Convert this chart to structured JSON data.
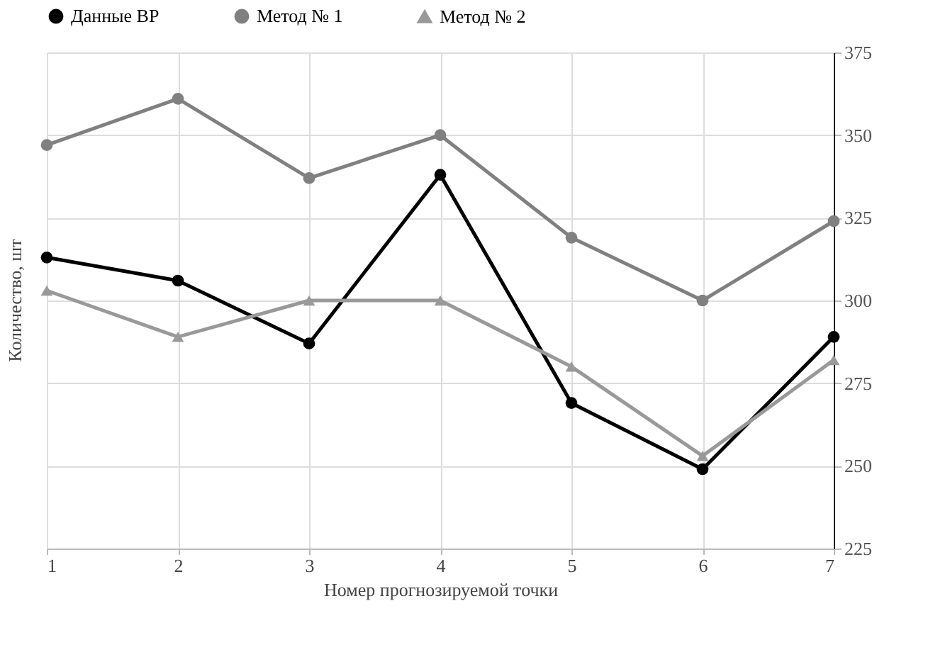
{
  "chart_data": {
    "type": "line",
    "xlabel": "Номер прогнозируемой точки",
    "ylabel": "Количество, шт",
    "x": [
      1,
      2,
      3,
      4,
      5,
      6,
      7
    ],
    "xlim": [
      1,
      7
    ],
    "xticks": [
      1,
      2,
      3,
      4,
      5,
      6,
      7
    ],
    "ylim": [
      225,
      375
    ],
    "yticks": [
      225,
      250,
      275,
      300,
      325,
      350,
      375
    ],
    "grid": true,
    "legend": "top",
    "line_style": "solid",
    "series": [
      {
        "name": "Данные ВР",
        "color": "#000000",
        "marker": "circle",
        "values": [
          313,
          306,
          287,
          338,
          269,
          249,
          289
        ]
      },
      {
        "name": "Метод № 1",
        "color": "#808080",
        "marker": "circle",
        "values": [
          347,
          361,
          337,
          350,
          319,
          300,
          324
        ]
      },
      {
        "name": "Метод № 2",
        "color": "#999999",
        "marker": "triangle",
        "values": [
          303,
          289,
          300,
          300,
          280,
          253,
          282
        ]
      }
    ]
  }
}
